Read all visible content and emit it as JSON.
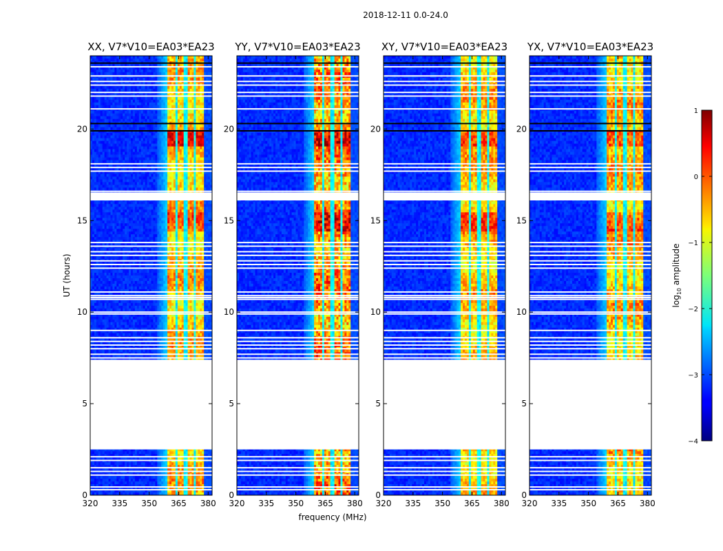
{
  "chart_data": {
    "type": "heatmap",
    "suptitle": "2018-12-11 0.0-24.0",
    "xlabel": "frequency (MHz)",
    "ylabel": "UT (hours)",
    "xlim": [
      320,
      382
    ],
    "ylim": [
      0,
      24
    ],
    "xticks": [
      "320",
      "335",
      "350",
      "365",
      "380"
    ],
    "xtick_values": [
      320,
      335,
      350,
      365,
      380
    ],
    "yticks": [
      "0",
      "5",
      "10",
      "15",
      "20"
    ],
    "ytick_values": [
      0,
      5,
      10,
      15,
      20
    ],
    "panels": [
      {
        "title": "XX, V7*V10=EA03*EA23",
        "band_strength": 0.55
      },
      {
        "title": "YY, V7*V10=EA03*EA23",
        "band_strength": 0.85
      },
      {
        "title": "XY, V7*V10=EA03*EA23",
        "band_strength": 0.55
      },
      {
        "title": "YX, V7*V10=EA03*EA23",
        "band_strength": 0.6
      }
    ],
    "rfi_band_mhz": [
      359.5,
      378
    ],
    "rfi_channel_edges_mhz": [
      364,
      368.5,
      373
    ],
    "data_gap_hours": [
      2.5,
      7.4
    ],
    "flagged_rows_hours": [
      0.3,
      0.45,
      1.1,
      1.3,
      1.5,
      1.9,
      2.1,
      7.5,
      7.7,
      8.0,
      8.2,
      8.4,
      8.6,
      9.0,
      9.9,
      10.0,
      10.7,
      10.8,
      10.9,
      11.1,
      12.4,
      12.6,
      12.8,
      13.1,
      13.3,
      13.6,
      13.8,
      16.5,
      16.6,
      17.7,
      17.9,
      18.1,
      21.1,
      21.8,
      22.0,
      22.4,
      22.6,
      22.9,
      23.4
    ],
    "black_rows_hours": [
      19.9,
      20.3,
      23.6
    ],
    "colorbar": {
      "label_main": "log",
      "label_sub": "10",
      "label_rest": " amplitude",
      "range": [
        -4,
        1
      ],
      "ticks": [
        "1",
        "0",
        "−1",
        "−2",
        "−3",
        "−4"
      ],
      "tick_values": [
        1,
        0,
        -1,
        -2,
        -3,
        -4
      ],
      "colormap": "jet"
    }
  }
}
